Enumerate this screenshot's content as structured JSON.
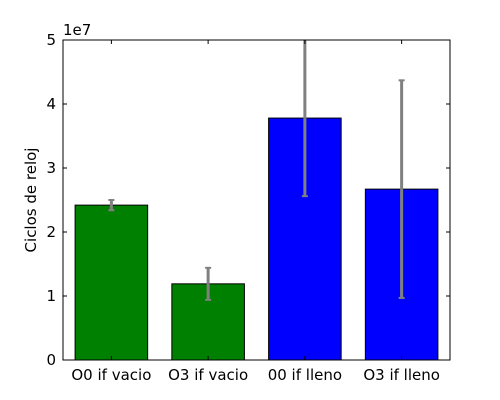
{
  "chart_data": {
    "type": "bar",
    "title": "",
    "xlabel": "",
    "ylabel": "Ciclos de reloj",
    "y_scale_label": "1e7",
    "y_scale": 10000000,
    "ylim": [
      0,
      50000000
    ],
    "yticks": [
      0,
      10000000,
      20000000,
      30000000,
      40000000,
      50000000
    ],
    "ytick_labels": [
      "0",
      "1",
      "2",
      "3",
      "4",
      "5"
    ],
    "categories": [
      "O0 if vacio",
      "O3 if vacio",
      "00 if lleno",
      "O3 if lleno"
    ],
    "values": [
      24200000,
      11900000,
      37800000,
      26700000
    ],
    "errors": [
      800000,
      2500000,
      12200000,
      17000000
    ],
    "bar_colors": [
      "#008000",
      "#008000",
      "#0000ff",
      "#0000ff"
    ],
    "error_color": "#808080",
    "grid": false,
    "legend": "none"
  }
}
